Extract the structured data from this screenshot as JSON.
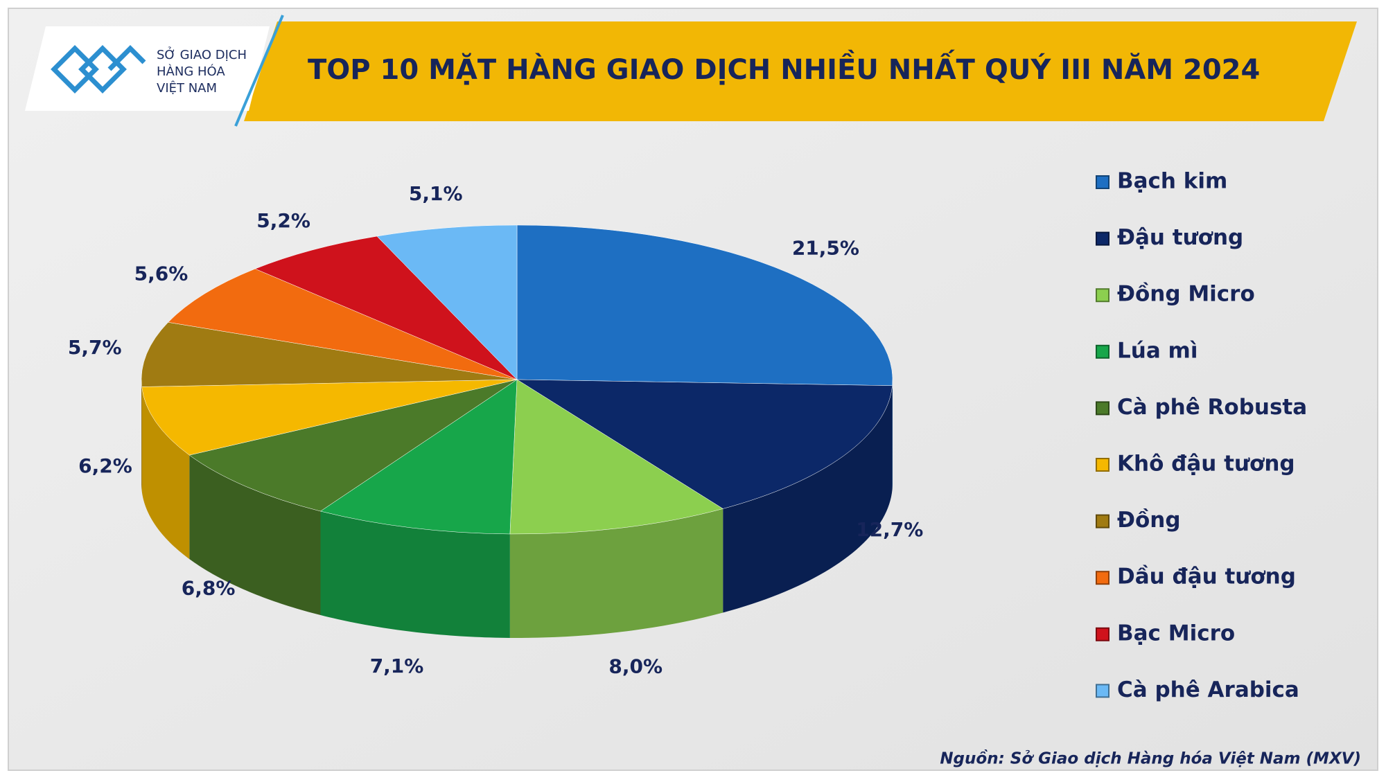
{
  "logo": {
    "lines": [
      "SỞ GIAO DỊCH",
      "HÀNG HÓA",
      "VIỆT NAM"
    ]
  },
  "chart_data": {
    "type": "pie",
    "title": "TOP 10 MẶT HÀNG GIAO DỊCH NHIỀU NHẤT QUÝ III NĂM 2024",
    "categories": [
      "Bạch kim",
      "Đậu tương",
      "Đồng Micro",
      "Lúa mì",
      "Cà phê Robusta",
      "Khô đậu tương",
      "Đồng",
      "Dầu đậu tương",
      "Bạc Micro",
      "Cà phê Arabica"
    ],
    "values": [
      21.5,
      12.7,
      8.0,
      7.1,
      6.8,
      6.2,
      5.7,
      5.6,
      5.2,
      5.1
    ],
    "value_labels": [
      "21,5%",
      "12,7%",
      "8,0%",
      "7,1%",
      "6,8%",
      "6,2%",
      "5,7%",
      "5,6%",
      "5,2%",
      "5,1%"
    ],
    "colors": [
      "#1e6fc2",
      "#0c2868",
      "#8ccf4f",
      "#17a64a",
      "#4b7a29",
      "#f5b800",
      "#a07b12",
      "#f26b0f",
      "#cf121c",
      "#6bb9f5"
    ],
    "legend": "right"
  },
  "source": "Nguồn: Sở Giao dịch Hàng hóa Việt Nam (MXV)"
}
